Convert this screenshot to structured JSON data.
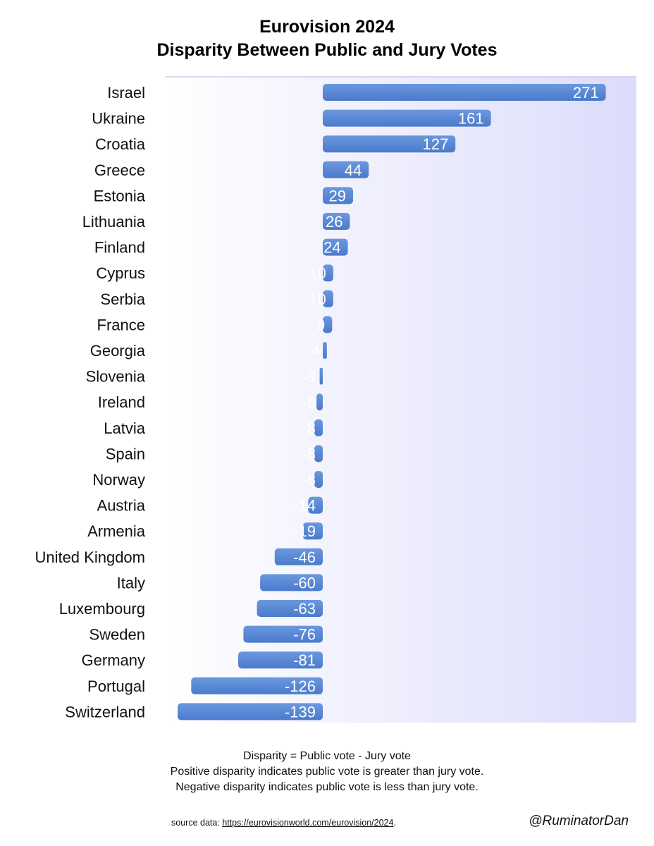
{
  "title_line1": "Eurovision 2024",
  "title_line2": "Disparity Between Public and Jury Votes",
  "notes": [
    "Disparity = Public vote - Jury vote",
    "Positive disparity indicates public vote is greater than jury vote.",
    "Negative disparity indicates public vote is less than jury vote."
  ],
  "source_prefix": "source data: ",
  "source_link": "https://eurovisionworld.com/eurovision/2024",
  "source_suffix": ".",
  "handle": "@RuminatorDan",
  "colors": {
    "bar": "#4a7bcc",
    "bar_light": "#6b98de",
    "bg_start": "#ffffff",
    "bg_end": "#dcdcfb"
  },
  "chart_data": {
    "type": "bar",
    "orientation": "horizontal",
    "title": "Eurovision 2024 Disparity Between Public and Jury Votes",
    "categories": [
      "Israel",
      "Ukraine",
      "Croatia",
      "Greece",
      "Estonia",
      "Lithuania",
      "Finland",
      "Cyprus",
      "Serbia",
      "France",
      "Georgia",
      "Slovenia",
      "Ireland",
      "Latvia",
      "Spain",
      "Norway",
      "Austria",
      "Armenia",
      "United Kingdom",
      "Italy",
      "Luxembourg",
      "Sweden",
      "Germany",
      "Portugal",
      "Switzerland"
    ],
    "values": [
      271,
      161,
      127,
      44,
      29,
      26,
      24,
      10,
      10,
      9,
      4,
      -3,
      -6,
      -8,
      -8,
      -8,
      -14,
      -19,
      -46,
      -60,
      -63,
      -76,
      -81,
      -126,
      -139
    ],
    "data_labels": [
      "271",
      "161",
      "127",
      "44",
      "29",
      "26",
      "24",
      "10",
      "10",
      "9",
      "4",
      "-3",
      "-6",
      "-8",
      "-8",
      "-8",
      "-14",
      "-19",
      "-46",
      "-60",
      "-63",
      "-76",
      "-81",
      "-126",
      "-139"
    ],
    "xlim": [
      -139,
      271
    ],
    "grid": false,
    "legend": "none"
  }
}
